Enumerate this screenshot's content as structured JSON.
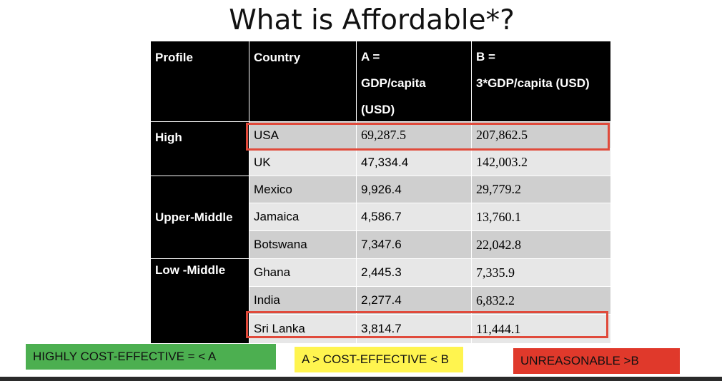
{
  "title": "What is Affordable*?",
  "table": {
    "headers": {
      "profile": "Profile",
      "country": "Country",
      "a": [
        "A =",
        "GDP/capita",
        "(USD)"
      ],
      "b": [
        "B =",
        "3*GDP/capita (USD)"
      ]
    },
    "profiles": {
      "high": "High",
      "upper_middle": "Upper-Middle",
      "low_middle": "Low -Middle"
    },
    "rows": [
      {
        "country": "USA",
        "a": "69,287.5",
        "b": "207,862.5"
      },
      {
        "country": "UK",
        "a": "47,334.4",
        "b": "142,003.2"
      },
      {
        "country": "Mexico",
        "a": "9,926.4",
        "b": "29,779.2"
      },
      {
        "country": "Jamaica",
        "a": "4,586.7",
        "b": "13,760.1"
      },
      {
        "country": "Botswana",
        "a": "7,347.6",
        "b": "22,042.8"
      },
      {
        "country": "Ghana",
        "a": "2,445.3",
        "b": "7,335.9"
      },
      {
        "country": "India",
        "a": "2,277.4",
        "b": "6,832.2"
      },
      {
        "country": "Sri Lanka",
        "a": "3,814.7",
        "b": "11,444.1"
      }
    ]
  },
  "legend": {
    "green": "HIGHLY COST-EFFECTIVE = < A",
    "yellow": "A > COST-EFFECTIVE < B",
    "red": "UNREASONABLE >B"
  },
  "colors": {
    "green": "#4caf50",
    "yellow": "#fff44f",
    "red": "#e0392b",
    "highlight_border": "#e04a3b"
  }
}
